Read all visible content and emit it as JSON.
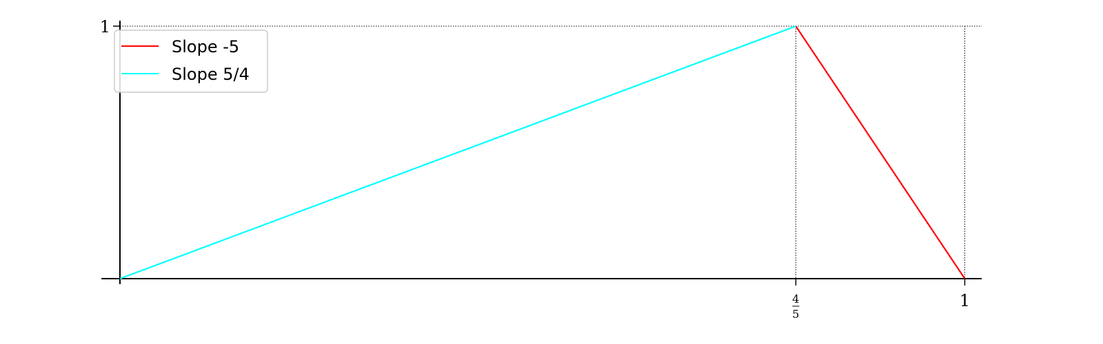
{
  "chart_data": {
    "type": "line",
    "xlim": [
      0,
      1.02
    ],
    "ylim": [
      0,
      1
    ],
    "series": [
      {
        "name": "Slope -5",
        "color": "#ff0000",
        "x": [
          0.8,
          1.0
        ],
        "y": [
          1.0,
          0.0
        ]
      },
      {
        "name": "Slope 5/4",
        "color": "#00ffff",
        "x": [
          0.0,
          0.8
        ],
        "y": [
          0.0,
          1.0
        ]
      }
    ],
    "x_ticks": [
      {
        "value": 0.8,
        "label": {
          "numerator": "4",
          "denominator": "5"
        }
      },
      {
        "value": 1.0,
        "label": "1"
      }
    ],
    "y_ticks": [
      {
        "value": 1.0,
        "label": "1"
      }
    ],
    "reference_lines": {
      "horizontal": [
        1.0
      ],
      "vertical": [
        0.8,
        1.0
      ],
      "style": "dotted"
    },
    "legend": {
      "placement": "top-left",
      "entries": [
        "Slope -5",
        "Slope 5/4"
      ]
    },
    "grid": false,
    "title": "",
    "xlabel": "",
    "ylabel": ""
  }
}
